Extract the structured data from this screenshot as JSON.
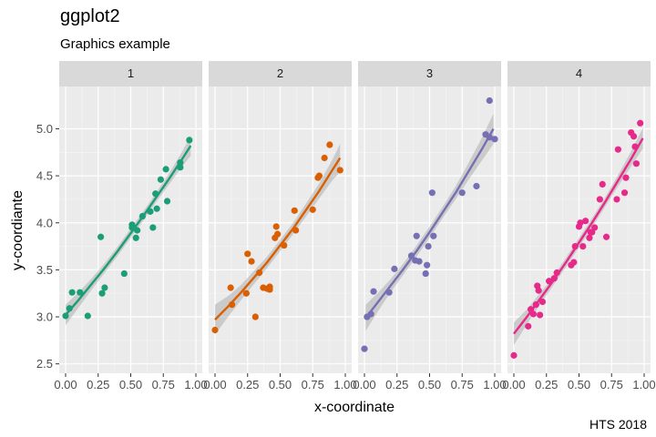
{
  "chart_data": {
    "type": "scatter",
    "title": "ggplot2",
    "subtitle": "Graphics example",
    "caption": "HTS 2018",
    "xlabel": "x-coordinate",
    "ylabel": "y-coordiante",
    "xlim": [
      0,
      1
    ],
    "ylim": [
      2.4,
      5.45
    ],
    "x_ticks": [
      0.0,
      0.25,
      0.5,
      0.75,
      1.0
    ],
    "x_tick_labels": [
      "0.00",
      "0.25",
      "0.50",
      "0.75",
      "1.00"
    ],
    "y_ticks": [
      2.5,
      3.0,
      3.5,
      4.0,
      4.5,
      5.0
    ],
    "y_tick_labels": [
      "2.5",
      "3.0",
      "3.5",
      "4.0",
      "4.5",
      "5.0"
    ],
    "grid": true,
    "smooth": "quadratic fit with confidence band",
    "facets": [
      {
        "label": "1",
        "color": "#1b9e77",
        "points": [
          [
            0.0,
            3.01
          ],
          [
            0.03,
            3.09
          ],
          [
            0.05,
            3.26
          ],
          [
            0.11,
            3.26
          ],
          [
            0.17,
            3.01
          ],
          [
            0.27,
            3.85
          ],
          [
            0.28,
            3.25
          ],
          [
            0.3,
            3.31
          ],
          [
            0.45,
            3.46
          ],
          [
            0.51,
            3.98
          ],
          [
            0.51,
            3.95
          ],
          [
            0.54,
            3.84
          ],
          [
            0.55,
            3.92
          ],
          [
            0.59,
            4.07
          ],
          [
            0.65,
            4.12
          ],
          [
            0.67,
            3.95
          ],
          [
            0.69,
            4.31
          ],
          [
            0.7,
            4.15
          ],
          [
            0.73,
            4.46
          ],
          [
            0.77,
            4.57
          ],
          [
            0.78,
            4.23
          ],
          [
            0.88,
            4.64
          ],
          [
            0.88,
            4.59
          ],
          [
            0.95,
            4.88
          ]
        ],
        "fit": [
          [
            0.0,
            3.02
          ],
          [
            0.1,
            3.18
          ],
          [
            0.2,
            3.35
          ],
          [
            0.3,
            3.52
          ],
          [
            0.4,
            3.7
          ],
          [
            0.5,
            3.89
          ],
          [
            0.6,
            4.08
          ],
          [
            0.7,
            4.28
          ],
          [
            0.8,
            4.48
          ],
          [
            0.9,
            4.69
          ],
          [
            0.96,
            4.82
          ]
        ],
        "band": [
          0.11,
          0.08,
          0.06,
          0.05,
          0.05,
          0.05,
          0.05,
          0.05,
          0.06,
          0.08,
          0.11
        ]
      },
      {
        "label": "2",
        "color": "#d95f02",
        "points": [
          [
            0.0,
            2.86
          ],
          [
            0.12,
            3.31
          ],
          [
            0.13,
            3.13
          ],
          [
            0.24,
            3.25
          ],
          [
            0.25,
            3.67
          ],
          [
            0.28,
            3.59
          ],
          [
            0.31,
            3.0
          ],
          [
            0.34,
            3.47
          ],
          [
            0.37,
            3.31
          ],
          [
            0.4,
            3.3
          ],
          [
            0.42,
            3.32
          ],
          [
            0.42,
            3.29
          ],
          [
            0.46,
            3.84
          ],
          [
            0.47,
            3.96
          ],
          [
            0.48,
            3.88
          ],
          [
            0.53,
            3.76
          ],
          [
            0.61,
            4.13
          ],
          [
            0.62,
            3.92
          ],
          [
            0.75,
            4.14
          ],
          [
            0.79,
            4.48
          ],
          [
            0.8,
            4.5
          ],
          [
            0.84,
            4.69
          ],
          [
            0.88,
            4.83
          ],
          [
            0.96,
            4.56
          ]
        ],
        "fit": [
          [
            0.0,
            2.97
          ],
          [
            0.1,
            3.11
          ],
          [
            0.2,
            3.26
          ],
          [
            0.3,
            3.42
          ],
          [
            0.4,
            3.58
          ],
          [
            0.5,
            3.76
          ],
          [
            0.6,
            3.94
          ],
          [
            0.7,
            4.14
          ],
          [
            0.8,
            4.34
          ],
          [
            0.9,
            4.56
          ],
          [
            0.96,
            4.69
          ]
        ],
        "band": [
          0.16,
          0.11,
          0.08,
          0.07,
          0.06,
          0.06,
          0.06,
          0.07,
          0.08,
          0.11,
          0.15
        ]
      },
      {
        "label": "3",
        "color": "#7570b3",
        "points": [
          [
            0.0,
            2.66
          ],
          [
            0.02,
            3.0
          ],
          [
            0.05,
            3.03
          ],
          [
            0.07,
            3.27
          ],
          [
            0.19,
            3.26
          ],
          [
            0.23,
            3.51
          ],
          [
            0.36,
            3.65
          ],
          [
            0.39,
            3.6
          ],
          [
            0.4,
            3.86
          ],
          [
            0.42,
            3.59
          ],
          [
            0.47,
            3.46
          ],
          [
            0.48,
            3.55
          ],
          [
            0.49,
            3.75
          ],
          [
            0.52,
            4.32
          ],
          [
            0.53,
            3.86
          ],
          [
            0.75,
            4.32
          ],
          [
            0.86,
            4.39
          ],
          [
            0.93,
            4.94
          ],
          [
            0.96,
            5.3
          ],
          [
            1.0,
            4.89
          ],
          [
            0.96,
            4.91
          ]
        ],
        "fit": [
          [
            0.01,
            2.99
          ],
          [
            0.1,
            3.15
          ],
          [
            0.2,
            3.33
          ],
          [
            0.3,
            3.51
          ],
          [
            0.4,
            3.7
          ],
          [
            0.5,
            3.9
          ],
          [
            0.6,
            4.11
          ],
          [
            0.7,
            4.32
          ],
          [
            0.8,
            4.55
          ],
          [
            0.9,
            4.78
          ],
          [
            0.99,
            5.0
          ]
        ],
        "band": [
          0.14,
          0.1,
          0.07,
          0.06,
          0.06,
          0.06,
          0.06,
          0.07,
          0.09,
          0.12,
          0.16
        ]
      },
      {
        "label": "4",
        "color": "#e7298a",
        "points": [
          [
            0.0,
            2.59
          ],
          [
            0.11,
            2.9
          ],
          [
            0.13,
            3.08
          ],
          [
            0.15,
            3.03
          ],
          [
            0.17,
            3.13
          ],
          [
            0.18,
            3.33
          ],
          [
            0.19,
            3.28
          ],
          [
            0.2,
            3.02
          ],
          [
            0.22,
            3.16
          ],
          [
            0.27,
            3.38
          ],
          [
            0.31,
            3.41
          ],
          [
            0.33,
            3.47
          ],
          [
            0.44,
            3.55
          ],
          [
            0.46,
            3.58
          ],
          [
            0.47,
            3.75
          ],
          [
            0.5,
            3.96
          ],
          [
            0.51,
            4.0
          ],
          [
            0.53,
            3.75
          ],
          [
            0.55,
            4.02
          ],
          [
            0.58,
            3.84
          ],
          [
            0.59,
            3.9
          ],
          [
            0.6,
            3.9
          ],
          [
            0.62,
            3.95
          ],
          [
            0.66,
            4.25
          ],
          [
            0.68,
            4.41
          ],
          [
            0.71,
            3.85
          ],
          [
            0.79,
            4.25
          ],
          [
            0.8,
            4.78
          ],
          [
            0.85,
            4.32
          ],
          [
            0.86,
            4.48
          ],
          [
            0.9,
            4.96
          ],
          [
            0.92,
            4.92
          ],
          [
            0.93,
            4.81
          ],
          [
            0.94,
            4.63
          ],
          [
            0.97,
            5.06
          ]
        ],
        "fit": [
          [
            0.0,
            2.82
          ],
          [
            0.1,
            3.0
          ],
          [
            0.2,
            3.19
          ],
          [
            0.3,
            3.38
          ],
          [
            0.4,
            3.58
          ],
          [
            0.5,
            3.79
          ],
          [
            0.6,
            4.0
          ],
          [
            0.7,
            4.22
          ],
          [
            0.8,
            4.45
          ],
          [
            0.9,
            4.68
          ],
          [
            0.99,
            4.9
          ]
        ],
        "band": [
          0.12,
          0.08,
          0.06,
          0.05,
          0.05,
          0.05,
          0.05,
          0.05,
          0.06,
          0.08,
          0.11
        ]
      }
    ]
  }
}
